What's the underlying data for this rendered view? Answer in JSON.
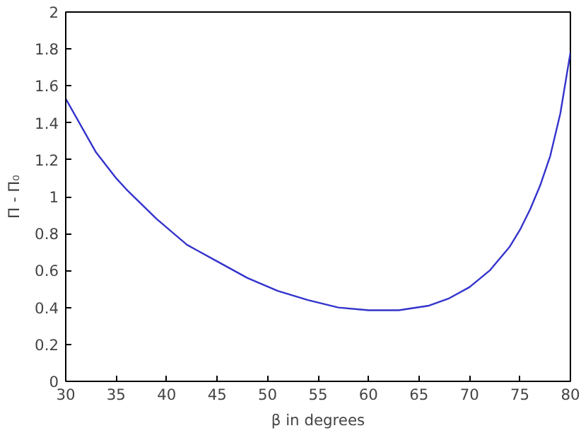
{
  "chart_data": {
    "type": "line",
    "xlabel": "β in degrees",
    "ylabel": "Π - Π₀",
    "x": [
      30,
      33,
      35,
      36,
      39,
      42,
      43,
      45,
      48,
      51,
      54,
      57,
      60,
      63,
      66,
      68,
      70,
      72,
      74,
      75,
      76,
      77,
      78,
      79,
      80
    ],
    "series": [
      {
        "color": "#3333cc",
        "values": [
          1.53,
          1.24,
          1.1,
          1.04,
          0.88,
          0.74,
          0.71,
          0.65,
          0.56,
          0.49,
          0.44,
          0.4,
          0.385,
          0.385,
          0.41,
          0.45,
          0.51,
          0.6,
          0.73,
          0.82,
          0.93,
          1.06,
          1.22,
          1.45,
          1.78
        ]
      }
    ],
    "xlim": [
      30,
      80
    ],
    "ylim": [
      0,
      2
    ],
    "xticks": [
      30,
      35,
      40,
      45,
      50,
      55,
      60,
      65,
      70,
      75,
      80
    ],
    "yticks": [
      0,
      0.2,
      0.4,
      0.6,
      0.8,
      1,
      1.2,
      1.4,
      1.6,
      1.8,
      2
    ],
    "grid": false,
    "marker": "none",
    "line_style": "solid"
  }
}
